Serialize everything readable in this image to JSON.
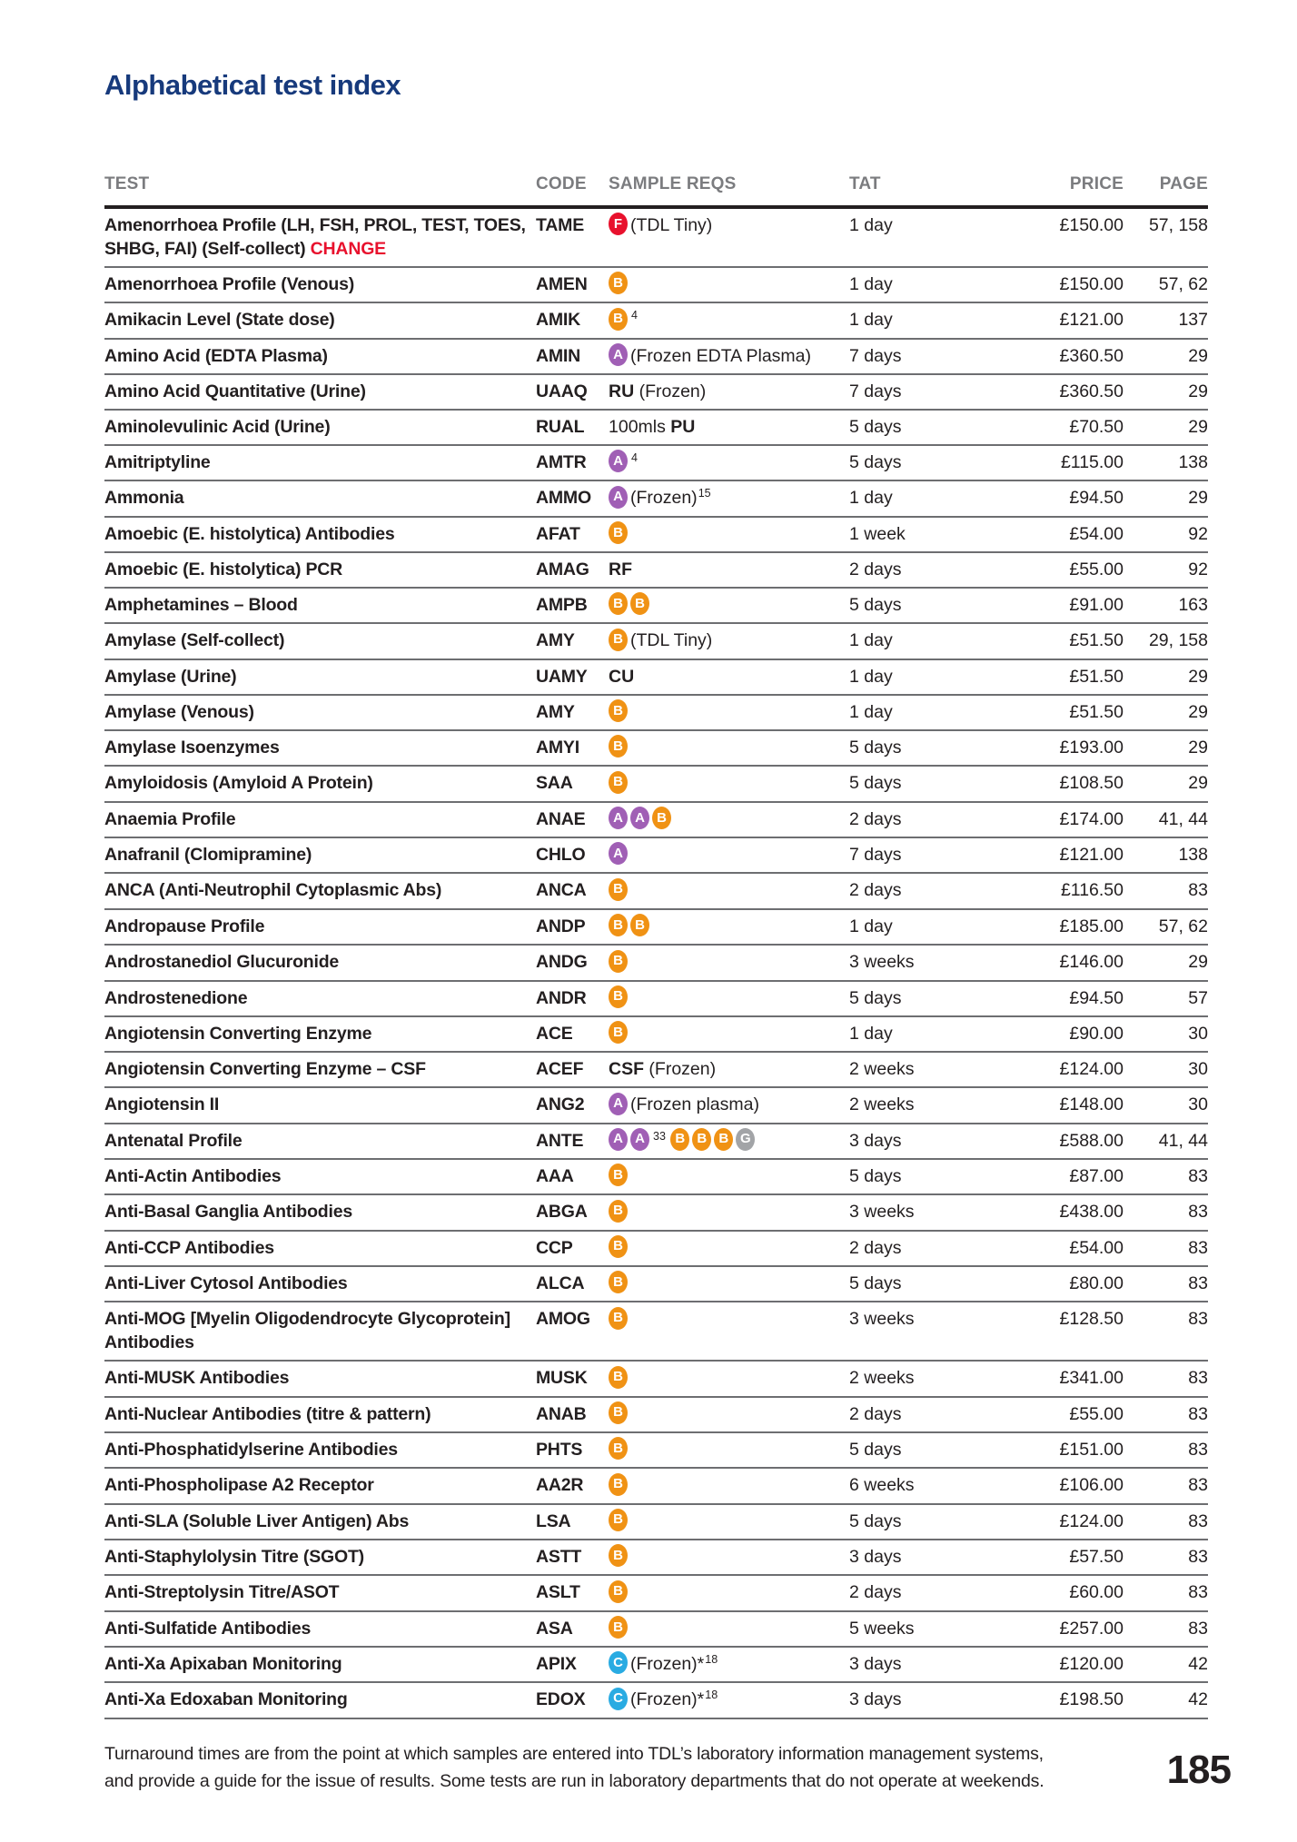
{
  "page": {
    "title": "Alphabetical test index",
    "page_number": "185",
    "footer_line1": "Turnaround times are from the point at which samples are entered into TDL’s laboratory information management systems,",
    "footer_line2": "and provide a guide for the issue of results. Some tests are run in laboratory departments that do not operate at weekends."
  },
  "colors": {
    "title_blue": "#173a7c",
    "change_red": "#e8112d",
    "icon_red": "#e8112d",
    "icon_orange": "#f09214",
    "icon_purple": "#a05fb5",
    "icon_blue": "#29abe2",
    "icon_grey": "#a2a4a7",
    "header_grey": "#7b7c7f",
    "row_line": "#6d6e71",
    "text_black": "#231f20"
  },
  "table": {
    "headers": [
      "TEST",
      "CODE",
      "SAMPLE REQS",
      "TAT",
      "PRICE",
      "PAGE"
    ],
    "rows": [
      {
        "test": "Amenorrhoea Profile (LH, FSH, PROL, TEST, TOES, SHBG, FAI) (Self-collect) ",
        "change": "CHANGE",
        "code": "TAME",
        "sample": [
          {
            "t": "i",
            "l": "F",
            "c": "red"
          },
          {
            "t": "r",
            "x": "(TDL Tiny)"
          }
        ],
        "tat": "1 day",
        "price": "£150.00",
        "page": "57, 158"
      },
      {
        "test": "Amenorrhoea Profile (Venous)",
        "code": "AMEN",
        "sample": [
          {
            "t": "i",
            "l": "B",
            "c": "orange"
          }
        ],
        "tat": "1 day",
        "price": "£150.00",
        "page": "57, 62"
      },
      {
        "test": "Amikacin Level (State dose)",
        "code": "AMIK",
        "sample": [
          {
            "t": "i",
            "l": "B",
            "c": "orange"
          },
          {
            "t": "s",
            "x": "4"
          }
        ],
        "tat": "1 day",
        "price": "£121.00",
        "page": "137"
      },
      {
        "test": "Amino Acid (EDTA Plasma)",
        "code": "AMIN",
        "sample": [
          {
            "t": "i",
            "l": "A",
            "c": "purple"
          },
          {
            "t": "r",
            "x": "(Frozen EDTA Plasma)"
          }
        ],
        "tat": "7 days",
        "price": "£360.50",
        "page": "29"
      },
      {
        "test": "Amino Acid Quantitative (Urine)",
        "code": "UAAQ",
        "sample": [
          {
            "t": "b",
            "x": "RU"
          },
          {
            "t": "r",
            "x": " (Frozen)"
          }
        ],
        "tat": "7 days",
        "price": "£360.50",
        "page": "29"
      },
      {
        "test": "Aminolevulinic Acid (Urine)",
        "code": "RUAL",
        "sample": [
          {
            "t": "r",
            "x": "100mls "
          },
          {
            "t": "b",
            "x": "PU"
          }
        ],
        "tat": "5 days",
        "price": "£70.50",
        "page": "29"
      },
      {
        "test": "Amitriptyline",
        "code": "AMTR",
        "sample": [
          {
            "t": "i",
            "l": "A",
            "c": "purple"
          },
          {
            "t": "s",
            "x": "4"
          }
        ],
        "tat": "5 days",
        "price": "£115.00",
        "page": "138"
      },
      {
        "test": "Ammonia",
        "code": "AMMO",
        "sample": [
          {
            "t": "i",
            "l": "A",
            "c": "purple"
          },
          {
            "t": "r",
            "x": "(Frozen)"
          },
          {
            "t": "s",
            "x": "15"
          }
        ],
        "tat": "1 day",
        "price": "£94.50",
        "page": "29"
      },
      {
        "test": "Amoebic (E. histolytica) Antibodies",
        "code": "AFAT",
        "sample": [
          {
            "t": "i",
            "l": "B",
            "c": "orange"
          }
        ],
        "tat": "1 week",
        "price": "£54.00",
        "page": "92"
      },
      {
        "test": "Amoebic (E. histolytica) PCR",
        "code": "AMAG",
        "sample": [
          {
            "t": "b",
            "x": "RF"
          }
        ],
        "tat": "2 days",
        "price": "£55.00",
        "page": "92"
      },
      {
        "test": "Amphetamines – Blood",
        "code": "AMPB",
        "sample": [
          {
            "t": "i",
            "l": "B",
            "c": "orange"
          },
          {
            "t": "i",
            "l": "B",
            "c": "orange"
          }
        ],
        "tat": "5 days",
        "price": "£91.00",
        "page": "163"
      },
      {
        "test": "Amylase (Self-collect)",
        "code": "AMY",
        "sample": [
          {
            "t": "i",
            "l": "B",
            "c": "orange"
          },
          {
            "t": "r",
            "x": "(TDL Tiny)"
          }
        ],
        "tat": "1 day",
        "price": "£51.50",
        "page": "29, 158"
      },
      {
        "test": "Amylase (Urine)",
        "code": "UAMY",
        "sample": [
          {
            "t": "b",
            "x": "CU"
          }
        ],
        "tat": "1 day",
        "price": "£51.50",
        "page": "29"
      },
      {
        "test": "Amylase (Venous)",
        "code": "AMY",
        "sample": [
          {
            "t": "i",
            "l": "B",
            "c": "orange"
          }
        ],
        "tat": "1 day",
        "price": "£51.50",
        "page": "29"
      },
      {
        "test": "Amylase Isoenzymes",
        "code": "AMYI",
        "sample": [
          {
            "t": "i",
            "l": "B",
            "c": "orange"
          }
        ],
        "tat": "5 days",
        "price": "£193.00",
        "page": "29"
      },
      {
        "test": "Amyloidosis (Amyloid A Protein)",
        "code": "SAA",
        "sample": [
          {
            "t": "i",
            "l": "B",
            "c": "orange"
          }
        ],
        "tat": "5 days",
        "price": "£108.50",
        "page": "29"
      },
      {
        "test": "Anaemia Profile",
        "code": "ANAE",
        "sample": [
          {
            "t": "i",
            "l": "A",
            "c": "purple"
          },
          {
            "t": "i",
            "l": "A",
            "c": "purple"
          },
          {
            "t": "i",
            "l": "B",
            "c": "orange"
          }
        ],
        "tat": "2 days",
        "price": "£174.00",
        "page": "41, 44"
      },
      {
        "test": "Anafranil (Clomipramine)",
        "code": "CHLO",
        "sample": [
          {
            "t": "i",
            "l": "A",
            "c": "purple"
          }
        ],
        "tat": "7 days",
        "price": "£121.00",
        "page": "138"
      },
      {
        "test": "ANCA (Anti-Neutrophil Cytoplasmic Abs)",
        "code": "ANCA",
        "sample": [
          {
            "t": "i",
            "l": "B",
            "c": "orange"
          }
        ],
        "tat": "2 days",
        "price": "£116.50",
        "page": "83"
      },
      {
        "test": "Andropause Profile",
        "code": "ANDP",
        "sample": [
          {
            "t": "i",
            "l": "B",
            "c": "orange"
          },
          {
            "t": "i",
            "l": "B",
            "c": "orange"
          }
        ],
        "tat": "1 day",
        "price": "£185.00",
        "page": "57, 62"
      },
      {
        "test": "Androstanediol Glucuronide",
        "code": "ANDG",
        "sample": [
          {
            "t": "i",
            "l": "B",
            "c": "orange"
          }
        ],
        "tat": "3 weeks",
        "price": "£146.00",
        "page": "29"
      },
      {
        "test": "Androstenedione",
        "code": "ANDR",
        "sample": [
          {
            "t": "i",
            "l": "B",
            "c": "orange"
          }
        ],
        "tat": "5 days",
        "price": "£94.50",
        "page": "57"
      },
      {
        "test": "Angiotensin Converting Enzyme",
        "code": "ACE",
        "sample": [
          {
            "t": "i",
            "l": "B",
            "c": "orange"
          }
        ],
        "tat": "1 day",
        "price": "£90.00",
        "page": "30"
      },
      {
        "test": "Angiotensin Converting Enzyme – CSF",
        "code": "ACEF",
        "sample": [
          {
            "t": "b",
            "x": "CSF"
          },
          {
            "t": "r",
            "x": " (Frozen)"
          }
        ],
        "tat": "2 weeks",
        "price": "£124.00",
        "page": "30"
      },
      {
        "test": "Angiotensin II",
        "code": "ANG2",
        "sample": [
          {
            "t": "i",
            "l": "A",
            "c": "purple"
          },
          {
            "t": "r",
            "x": "(Frozen plasma)"
          }
        ],
        "tat": "2 weeks",
        "price": "£148.00",
        "page": "30"
      },
      {
        "test": "Antenatal Profile",
        "code": "ANTE",
        "sample": [
          {
            "t": "i",
            "l": "A",
            "c": "purple"
          },
          {
            "t": "i",
            "l": "A",
            "c": "purple"
          },
          {
            "t": "s",
            "x": "33"
          },
          {
            "t": "r",
            "x": " "
          },
          {
            "t": "i",
            "l": "B",
            "c": "orange"
          },
          {
            "t": "i",
            "l": "B",
            "c": "orange"
          },
          {
            "t": "i",
            "l": "B",
            "c": "orange"
          },
          {
            "t": "i",
            "l": "G",
            "c": "grey"
          }
        ],
        "tat": "3 days",
        "price": "£588.00",
        "page": "41, 44"
      },
      {
        "test": "Anti-Actin Antibodies",
        "code": "AAA",
        "sample": [
          {
            "t": "i",
            "l": "B",
            "c": "orange"
          }
        ],
        "tat": "5 days",
        "price": "£87.00",
        "page": "83"
      },
      {
        "test": "Anti-Basal Ganglia Antibodies",
        "code": "ABGA",
        "sample": [
          {
            "t": "i",
            "l": "B",
            "c": "orange"
          }
        ],
        "tat": "3 weeks",
        "price": "£438.00",
        "page": "83"
      },
      {
        "test": "Anti-CCP Antibodies",
        "code": "CCP",
        "sample": [
          {
            "t": "i",
            "l": "B",
            "c": "orange"
          }
        ],
        "tat": "2 days",
        "price": "£54.00",
        "page": "83"
      },
      {
        "test": "Anti-Liver Cytosol Antibodies",
        "code": "ALCA",
        "sample": [
          {
            "t": "i",
            "l": "B",
            "c": "orange"
          }
        ],
        "tat": "5 days",
        "price": "£80.00",
        "page": "83"
      },
      {
        "test": "Anti-MOG [Myelin Oligodendrocyte Glycoprotein] Antibodies",
        "code": "AMOG",
        "sample": [
          {
            "t": "i",
            "l": "B",
            "c": "orange"
          }
        ],
        "tat": "3 weeks",
        "price": "£128.50",
        "page": "83"
      },
      {
        "test": "Anti-MUSK Antibodies",
        "code": "MUSK",
        "sample": [
          {
            "t": "i",
            "l": "B",
            "c": "orange"
          }
        ],
        "tat": "2 weeks",
        "price": "£341.00",
        "page": "83"
      },
      {
        "test": "Anti-Nuclear Antibodies (titre & pattern)",
        "code": "ANAB",
        "sample": [
          {
            "t": "i",
            "l": "B",
            "c": "orange"
          }
        ],
        "tat": "2 days",
        "price": "£55.00",
        "page": "83"
      },
      {
        "test": "Anti-Phosphatidylserine Antibodies",
        "code": "PHTS",
        "sample": [
          {
            "t": "i",
            "l": "B",
            "c": "orange"
          }
        ],
        "tat": "5 days",
        "price": "£151.00",
        "page": "83"
      },
      {
        "test": "Anti-Phospholipase A2 Receptor",
        "code": "AA2R",
        "sample": [
          {
            "t": "i",
            "l": "B",
            "c": "orange"
          }
        ],
        "tat": "6 weeks",
        "price": "£106.00",
        "page": "83"
      },
      {
        "test": "Anti-SLA (Soluble Liver Antigen) Abs",
        "code": "LSA",
        "sample": [
          {
            "t": "i",
            "l": "B",
            "c": "orange"
          }
        ],
        "tat": "5 days",
        "price": "£124.00",
        "page": "83"
      },
      {
        "test": "Anti-Staphylolysin Titre (SGOT)",
        "code": "ASTT",
        "sample": [
          {
            "t": "i",
            "l": "B",
            "c": "orange"
          }
        ],
        "tat": "3 days",
        "price": "£57.50",
        "page": "83"
      },
      {
        "test": "Anti-Streptolysin Titre/ASOT",
        "code": "ASLT",
        "sample": [
          {
            "t": "i",
            "l": "B",
            "c": "orange"
          }
        ],
        "tat": "2 days",
        "price": "£60.00",
        "page": "83"
      },
      {
        "test": "Anti-Sulfatide Antibodies",
        "code": "ASA",
        "sample": [
          {
            "t": "i",
            "l": "B",
            "c": "orange"
          }
        ],
        "tat": "5 weeks",
        "price": "£257.00",
        "page": "83"
      },
      {
        "test": "Anti-Xa Apixaban Monitoring",
        "code": "APIX",
        "sample": [
          {
            "t": "i",
            "l": "C",
            "c": "blue"
          },
          {
            "t": "r",
            "x": "(Frozen)*"
          },
          {
            "t": "s",
            "x": "18"
          }
        ],
        "tat": "3 days",
        "price": "£120.00",
        "page": "42"
      },
      {
        "test": "Anti-Xa Edoxaban Monitoring",
        "code": "EDOX",
        "sample": [
          {
            "t": "i",
            "l": "C",
            "c": "blue"
          },
          {
            "t": "r",
            "x": "(Frozen)*"
          },
          {
            "t": "s",
            "x": "18"
          }
        ],
        "tat": "3 days",
        "price": "£198.50",
        "page": "42"
      }
    ]
  }
}
